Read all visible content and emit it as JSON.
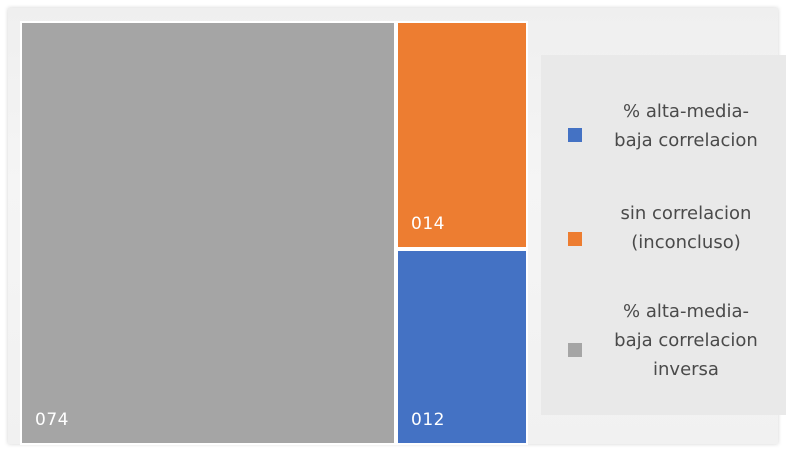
{
  "chart_data": {
    "type": "treemap",
    "title": "",
    "series": [
      {
        "name": "% alta-media-baja correlacion",
        "value": 12,
        "label": "012",
        "color": "#4472c4"
      },
      {
        "name": "sin correlacion (inconcluso)",
        "value": 14,
        "label": "014",
        "color": "#ed7d31"
      },
      {
        "name": "% alta-media-baja correlacion inversa",
        "value": 74,
        "label": "074",
        "color": "#a5a5a5"
      }
    ],
    "legend_position": "right"
  },
  "legend": {
    "items": [
      {
        "text": "% alta-media-\nbaja correlacion",
        "color": "#4472c4"
      },
      {
        "text": "sin correlacion\n(inconcluso)",
        "color": "#ed7d31"
      },
      {
        "text": "% alta-media-\nbaja correlacion\ninversa",
        "color": "#a5a5a5"
      }
    ]
  },
  "colors": {
    "background": "#f1f1f1",
    "legend_background": "#e9e9e9",
    "label_text": "#ffffff"
  }
}
